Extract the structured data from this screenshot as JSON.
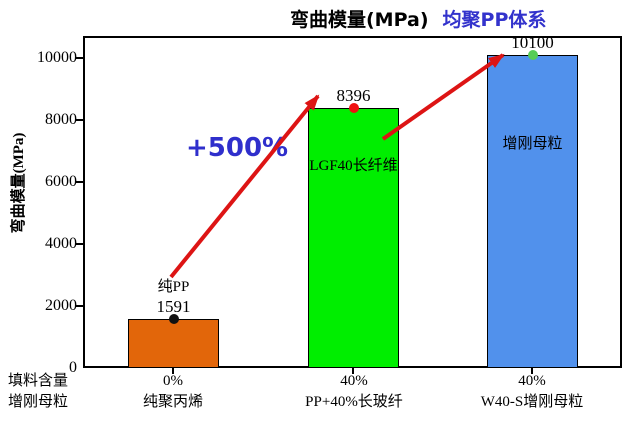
{
  "title": {
    "main": "弯曲模量(MPa)",
    "highlight": "均聚PP体系"
  },
  "annotation": {
    "text": "+500%"
  },
  "y_axis": {
    "label": "弯曲模量(MPa)",
    "ticks": [
      "10000",
      "8000",
      "6000",
      "4000",
      "2000",
      "0"
    ]
  },
  "x_axis": {
    "row1_header": "填料含量",
    "row2_header": "增刚母粒"
  },
  "colors": {
    "title_highlight": "#3333cc",
    "annotation_blue": "#2f2fcc",
    "arrow_red": "#dd1414"
  },
  "chart_data": {
    "type": "bar",
    "title": "弯曲模量(MPa) 均聚PP体系",
    "xlabel": "",
    "ylabel": "弯曲模量(MPa)",
    "ylim": [
      0,
      10700
    ],
    "yticks": [
      0,
      2000,
      4000,
      6000,
      8000,
      10000
    ],
    "grid": false,
    "legend": "none",
    "annotation": "+500%",
    "categories": [
      "0% 纯聚丙烯",
      "40% PP+40%长玻纤",
      "40% W40-S增刚母粒"
    ],
    "values": [
      1591,
      8396,
      10100
    ],
    "bars": [
      {
        "filler": "0%",
        "name": "纯聚丙烯",
        "value": 1591,
        "above_label": "纯PP",
        "inner_label": "",
        "color": "#e2660a",
        "dot_color": "#111111"
      },
      {
        "filler": "40%",
        "name": "PP+40%长玻纤",
        "value": 8396,
        "above_label": "",
        "inner_label": "LGF40长纤维",
        "color": "#00ee00",
        "dot_color": "#ee1111"
      },
      {
        "filler": "40%",
        "name": "W40-S增刚母粒",
        "value": 10100,
        "above_label": "",
        "inner_label": "增刚母粒",
        "color": "#5191ec",
        "dot_color": "#55cc55"
      }
    ]
  }
}
